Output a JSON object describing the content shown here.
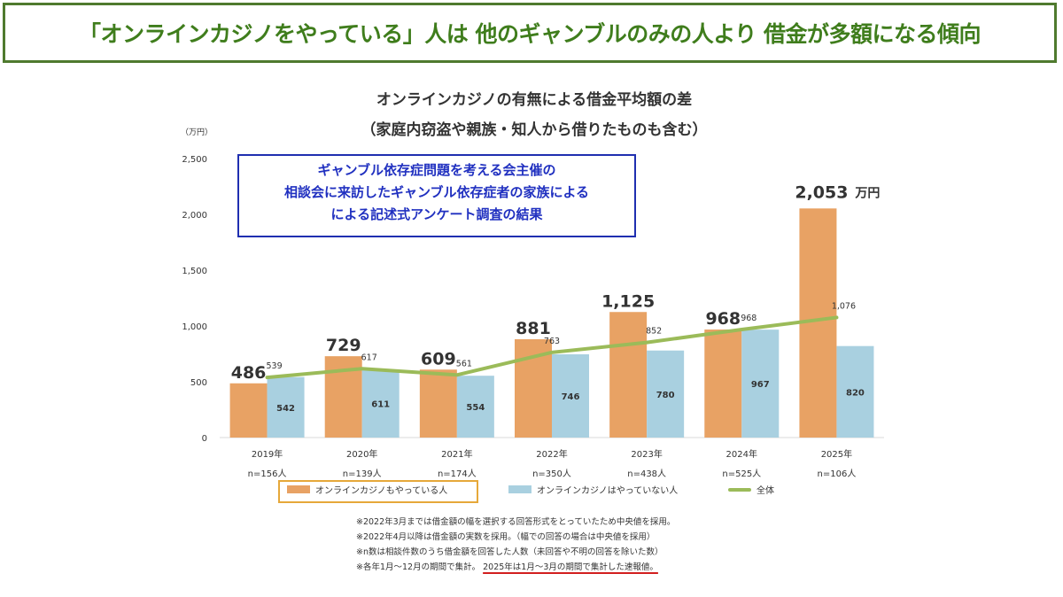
{
  "headline": "「オンラインカジノをやっている」人は 他のギャンブルのみの人より 借金が多額になる傾向",
  "chart_data": {
    "type": "bar",
    "title": "オンラインカジノの有無による借金平均額の差",
    "subtitle": "（家庭内窃盗や親族・知人から借りたものも含む）",
    "ylabel": "（万円）",
    "ylim": [
      0,
      2500
    ],
    "yticks": [
      "0",
      "500",
      "1,000",
      "1,500",
      "2,000",
      "2,500"
    ],
    "ytick_values": [
      0,
      500,
      1000,
      1500,
      2000,
      2500
    ],
    "categories": [
      "2019年",
      "2020年",
      "2021年",
      "2022年",
      "2023年",
      "2024年",
      "2025年"
    ],
    "sample_sizes": [
      "n=156人",
      "n=139人",
      "n=174人",
      "n=350人",
      "n=438人",
      "n=525人",
      "n=106人"
    ],
    "series": [
      {
        "name": "オンラインカジノもやっている人",
        "type": "bar",
        "color": "#e8a264",
        "values": [
          486,
          729,
          609,
          881,
          1125,
          968,
          2053
        ],
        "labels": [
          "486",
          "729",
          "609",
          "881",
          "1,125",
          "968",
          "2,053"
        ]
      },
      {
        "name": "オンラインカジノはやっていない人",
        "type": "bar",
        "color": "#a9d0e0",
        "values": [
          542,
          611,
          554,
          746,
          780,
          967,
          820
        ],
        "labels": [
          "542",
          "611",
          "554",
          "746",
          "780",
          "967",
          "820"
        ]
      },
      {
        "name": "全体",
        "type": "line",
        "color": "#9bbb59",
        "values": [
          539,
          617,
          561,
          763,
          852,
          968,
          1076
        ],
        "labels": [
          "539",
          "617",
          "561",
          "763",
          "852",
          "968",
          "1,076"
        ]
      }
    ],
    "unit_annotation": "万円",
    "grid": false,
    "legend_position": "bottom"
  },
  "callout": {
    "lines": [
      "ギャンブル依存症問題を考える会主催の",
      "相談会に来訪したギャンブル依存症者の家族による",
      "による記述式アンケート調査の結果"
    ],
    "border_color": "#1f2fb0"
  },
  "notes": [
    "※2022年3月までは借金額の幅を選択する回答形式をとっていたため中央値を採用。",
    "※2022年4月以降は借金額の実数を採用。（幅での回答の場合は中央値を採用）",
    "※n数は相談件数のうち借金額を回答した人数（未回答や不明の回答を除いた数）",
    "※各年1月～12月の期間で集計。",
    "2025年は1月～3月の期間で集計した速報値。"
  ]
}
